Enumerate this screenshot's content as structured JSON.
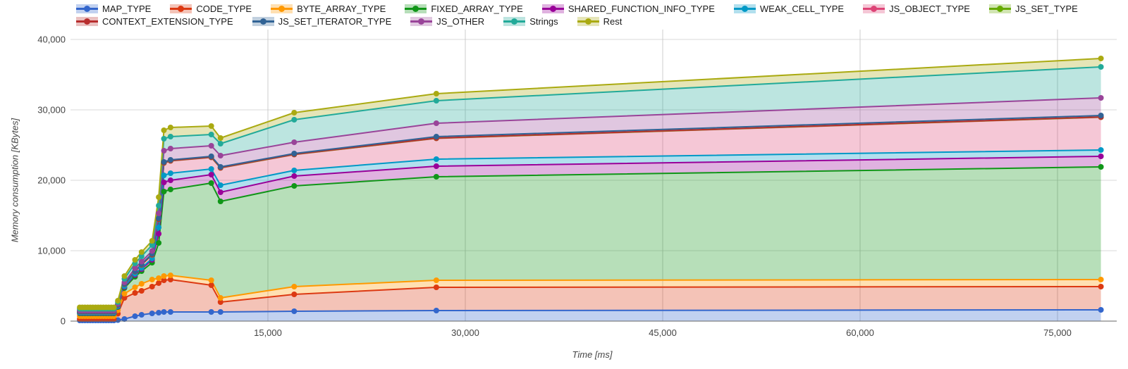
{
  "y_axis": {
    "title": "Memory consumption [KBytes]",
    "ticks": [
      {
        "v": 0,
        "label": "0"
      },
      {
        "v": 10000,
        "label": "10,000"
      },
      {
        "v": 20000,
        "label": "20,000"
      },
      {
        "v": 30000,
        "label": "30,000"
      },
      {
        "v": 40000,
        "label": "40,000"
      }
    ]
  },
  "x_axis": {
    "title": "Time [ms]",
    "ticks": [
      {
        "v": 15000,
        "label": "15,000"
      },
      {
        "v": 30000,
        "label": "30,000"
      },
      {
        "v": 45000,
        "label": "45,000"
      },
      {
        "v": 60000,
        "label": "60,000"
      },
      {
        "v": 75000,
        "label": "75,000"
      }
    ]
  },
  "legend": {
    "rows": [
      [
        "MAP_TYPE",
        "CODE_TYPE",
        "BYTE_ARRAY_TYPE",
        "FIXED_ARRAY_TYPE",
        "SHARED_FUNCTION_INFO_TYPE",
        "WEAK_CELL_TYPE",
        "JS_OBJECT_TYPE",
        "JS_SET_TYPE"
      ],
      [
        "CONTEXT_EXTENSION_TYPE",
        "JS_SET_ITERATOR_TYPE",
        "JS_OTHER",
        "Strings",
        "Rest"
      ]
    ]
  },
  "chart_data": {
    "type": "area",
    "stacked": true,
    "title": "",
    "xlabel": "Time [ms]",
    "ylabel": "Memory consumption [KBytes]",
    "xlim": [
      0,
      79500
    ],
    "ylim": [
      0,
      41600
    ],
    "grid": true,
    "legend_position": "top",
    "area_opacity": 0.3,
    "x": [
      700,
      900,
      1100,
      1300,
      1500,
      1700,
      1900,
      2100,
      2300,
      2500,
      2700,
      2900,
      3100,
      3300,
      3600,
      4100,
      4900,
      5400,
      6200,
      6700,
      7100,
      7600,
      10700,
      11400,
      17000,
      27800,
      78300
    ],
    "series": [
      {
        "name": "MAP_TYPE",
        "color": "#3366cc",
        "values": [
          100,
          100,
          100,
          100,
          100,
          100,
          100,
          100,
          100,
          100,
          100,
          100,
          100,
          100,
          150,
          300,
          700,
          900,
          1100,
          1200,
          1300,
          1300,
          1300,
          1300,
          1400,
          1500,
          1600
        ]
      },
      {
        "name": "CODE_TYPE",
        "color": "#dc3912",
        "values": [
          200,
          200,
          200,
          200,
          200,
          200,
          200,
          200,
          200,
          200,
          200,
          200,
          200,
          200,
          900,
          3000,
          3300,
          3400,
          3800,
          4200,
          4500,
          4600,
          3800,
          1400,
          2400,
          3300,
          3300
        ]
      },
      {
        "name": "BYTE_ARRAY_TYPE",
        "color": "#ff9900",
        "values": [
          400,
          400,
          400,
          400,
          400,
          400,
          400,
          400,
          400,
          400,
          400,
          400,
          400,
          400,
          500,
          600,
          800,
          1000,
          1000,
          700,
          600,
          600,
          700,
          600,
          1100,
          1000,
          1000
        ]
      },
      {
        "name": "FIXED_ARRAY_TYPE",
        "color": "#109618",
        "values": [
          400,
          400,
          400,
          400,
          400,
          400,
          400,
          400,
          400,
          400,
          400,
          400,
          400,
          400,
          450,
          800,
          1500,
          1800,
          2400,
          5000,
          12000,
          12200,
          13800,
          13700,
          14300,
          14700,
          16000
        ]
      },
      {
        "name": "SHARED_FUNCTION_INFO_TYPE",
        "color": "#990099",
        "values": [
          60,
          60,
          60,
          60,
          60,
          60,
          60,
          60,
          60,
          60,
          60,
          60,
          60,
          60,
          70,
          150,
          250,
          300,
          400,
          1300,
          1300,
          1300,
          1200,
          1300,
          1400,
          1500,
          1500
        ]
      },
      {
        "name": "WEAK_CELL_TYPE",
        "color": "#0099c6",
        "values": [
          50,
          50,
          50,
          50,
          50,
          50,
          50,
          50,
          50,
          50,
          50,
          50,
          50,
          50,
          50,
          100,
          150,
          150,
          200,
          900,
          1000,
          1000,
          800,
          1000,
          800,
          1000,
          900
        ]
      },
      {
        "name": "JS_OBJECT_TYPE",
        "color": "#dd4477",
        "values": [
          140,
          140,
          140,
          140,
          140,
          140,
          140,
          140,
          140,
          140,
          140,
          140,
          140,
          140,
          160,
          280,
          330,
          450,
          500,
          1150,
          1750,
          1750,
          1650,
          2450,
          2250,
          2950,
          4650
        ]
      },
      {
        "name": "JS_SET_TYPE",
        "color": "#66aa00",
        "values": [
          10,
          10,
          10,
          10,
          10,
          10,
          10,
          10,
          10,
          10,
          10,
          10,
          10,
          10,
          10,
          10,
          10,
          10,
          20,
          20,
          20,
          20,
          20,
          20,
          20,
          20,
          20
        ]
      },
      {
        "name": "CONTEXT_EXTENSION_TYPE",
        "color": "#b82e2e",
        "values": [
          20,
          20,
          20,
          20,
          20,
          20,
          20,
          20,
          20,
          20,
          20,
          20,
          20,
          20,
          20,
          20,
          20,
          20,
          30,
          30,
          30,
          30,
          30,
          30,
          30,
          30,
          30
        ]
      },
      {
        "name": "JS_SET_ITERATOR_TYPE",
        "color": "#316395",
        "values": [
          30,
          30,
          30,
          30,
          30,
          30,
          30,
          30,
          30,
          30,
          30,
          30,
          30,
          30,
          30,
          40,
          40,
          70,
          100,
          100,
          100,
          100,
          100,
          100,
          100,
          200,
          200
        ]
      },
      {
        "name": "JS_OTHER",
        "color": "#994499",
        "values": [
          100,
          100,
          100,
          100,
          100,
          100,
          100,
          100,
          100,
          100,
          100,
          100,
          100,
          100,
          110,
          200,
          400,
          350,
          400,
          700,
          1600,
          1600,
          1500,
          1600,
          1600,
          1900,
          2500
        ]
      },
      {
        "name": "Strings",
        "color": "#22aa99",
        "values": [
          240,
          240,
          240,
          240,
          240,
          240,
          240,
          240,
          240,
          240,
          240,
          240,
          240,
          240,
          250,
          500,
          700,
          750,
          850,
          1100,
          1700,
          1700,
          1600,
          1700,
          3200,
          3200,
          4400
        ]
      },
      {
        "name": "Rest",
        "color": "#aaaa11",
        "values": [
          200,
          200,
          200,
          200,
          200,
          200,
          200,
          200,
          200,
          200,
          200,
          200,
          200,
          200,
          200,
          400,
          500,
          600,
          600,
          1200,
          1200,
          1300,
          1200,
          800,
          1000,
          1000,
          1200
        ]
      }
    ],
    "colors": {
      "grid_horizontal": "#d9d9d9",
      "grid_vertical": "#cccccc",
      "baseline": "#666666",
      "tick_label": "#444444"
    }
  }
}
